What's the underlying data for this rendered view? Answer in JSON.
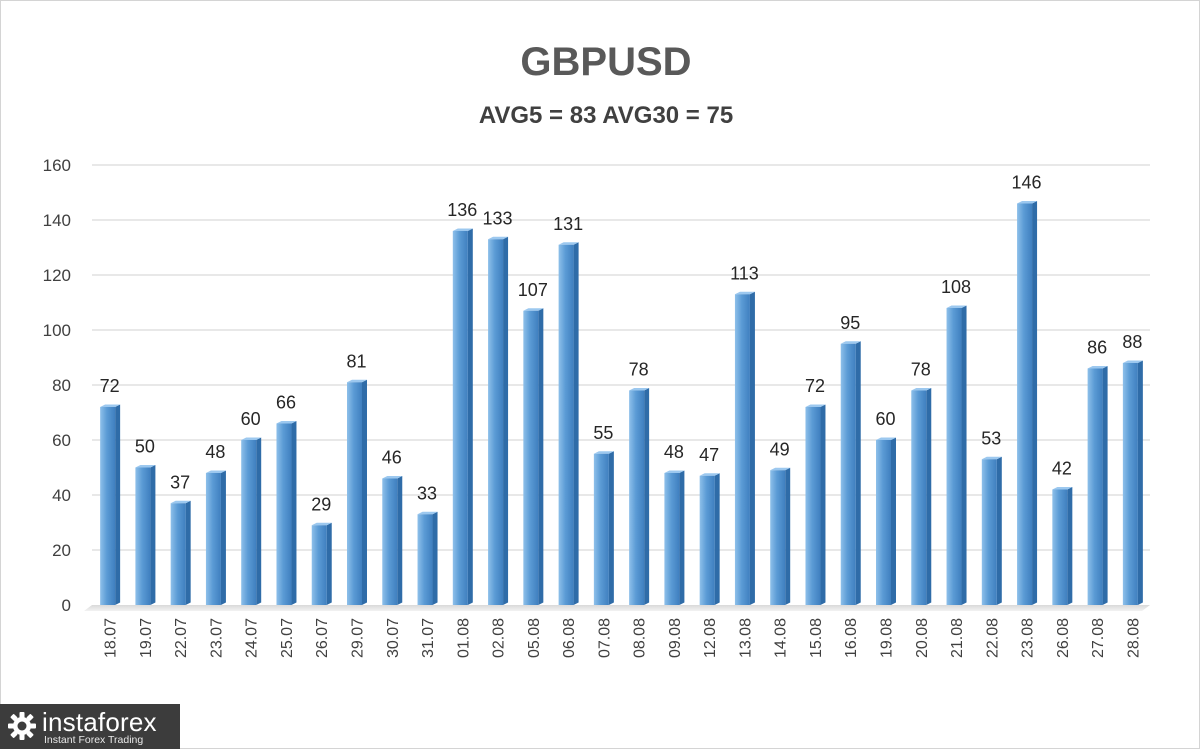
{
  "chart_data": {
    "type": "bar",
    "title": "GBPUSD",
    "subtitle": "AVG5 = 83 AVG30 = 75",
    "categories": [
      "18.07",
      "19.07",
      "22.07",
      "23.07",
      "24.07",
      "25.07",
      "26.07",
      "29.07",
      "30.07",
      "31.07",
      "01.08",
      "02.08",
      "05.08",
      "06.08",
      "07.08",
      "08.08",
      "09.08",
      "12.08",
      "13.08",
      "14.08",
      "15.08",
      "16.08",
      "19.08",
      "20.08",
      "21.08",
      "22.08",
      "23.08",
      "26.08",
      "27.08",
      "28.08"
    ],
    "values": [
      72,
      50,
      37,
      48,
      60,
      66,
      29,
      81,
      46,
      33,
      136,
      133,
      107,
      131,
      55,
      78,
      48,
      47,
      113,
      49,
      72,
      95,
      60,
      78,
      108,
      53,
      146,
      42,
      86,
      88
    ],
    "yticks": [
      0,
      20,
      40,
      60,
      80,
      100,
      120,
      140,
      160
    ],
    "ylim": [
      0,
      160
    ],
    "grid": true,
    "data_labels": true,
    "bar_color": "#5b9bd5"
  },
  "logo": {
    "name": "instaforex",
    "tagline": "Instant Forex Trading"
  }
}
